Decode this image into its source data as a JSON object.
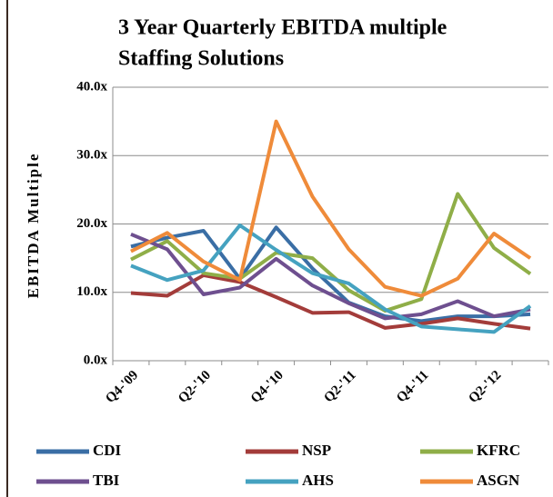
{
  "chart_data": {
    "type": "line",
    "title": "3 Year Quarterly EBITDA multiple",
    "subtitle": "Staffing Solutions",
    "y_label": "EBITDA Multiple",
    "categories": [
      "Q4-'09",
      null,
      "Q2-'10",
      null,
      "Q4-'10",
      null,
      "Q2-'11",
      null,
      "Q4-'11",
      null,
      "Q2-'12",
      null
    ],
    "ylim": [
      0,
      40
    ],
    "yticks": [
      {
        "value": 0,
        "label": "0.0x"
      },
      {
        "value": 10,
        "label": "10.0x"
      },
      {
        "value": 20,
        "label": "20.0x"
      },
      {
        "value": 30,
        "label": "30.0x"
      },
      {
        "value": 40,
        "label": "40.0x"
      }
    ],
    "grid": true,
    "legend": "bottom",
    "series": [
      {
        "name": "CDI",
        "color": "#3a6ea5",
        "values": [
          16.7,
          18,
          19,
          12,
          19.5,
          13.5,
          8.5,
          6.5,
          5.8,
          6.5,
          6.5,
          6.8
        ]
      },
      {
        "name": "NSP",
        "color": "#a33c3a",
        "values": [
          9.9,
          9.5,
          12.5,
          11.5,
          9.3,
          7,
          7.1,
          4.8,
          5.4,
          6.2,
          5.4,
          4.7
        ]
      },
      {
        "name": "KFRC",
        "color": "#8fae48",
        "values": [
          14.8,
          17.5,
          12.8,
          12,
          15.8,
          15,
          10.3,
          7.3,
          9,
          24.4,
          16.5,
          12.7
        ]
      },
      {
        "name": "TBI",
        "color": "#6e4f8f",
        "values": [
          18.5,
          16.3,
          9.7,
          10.7,
          14.9,
          11,
          8.4,
          6.2,
          6.8,
          8.7,
          6.5,
          7.5
        ]
      },
      {
        "name": "AHS",
        "color": "#45a2c0",
        "values": [
          13.9,
          11.8,
          13.2,
          19.8,
          16.2,
          12.8,
          11.3,
          7.5,
          5,
          4.6,
          4.2,
          8
        ]
      },
      {
        "name": "ASGN",
        "color": "#ef8b3a",
        "values": [
          16,
          18.7,
          14.5,
          11.8,
          35,
          24,
          16.3,
          10.8,
          9.5,
          12,
          18.6,
          15
        ]
      }
    ]
  }
}
